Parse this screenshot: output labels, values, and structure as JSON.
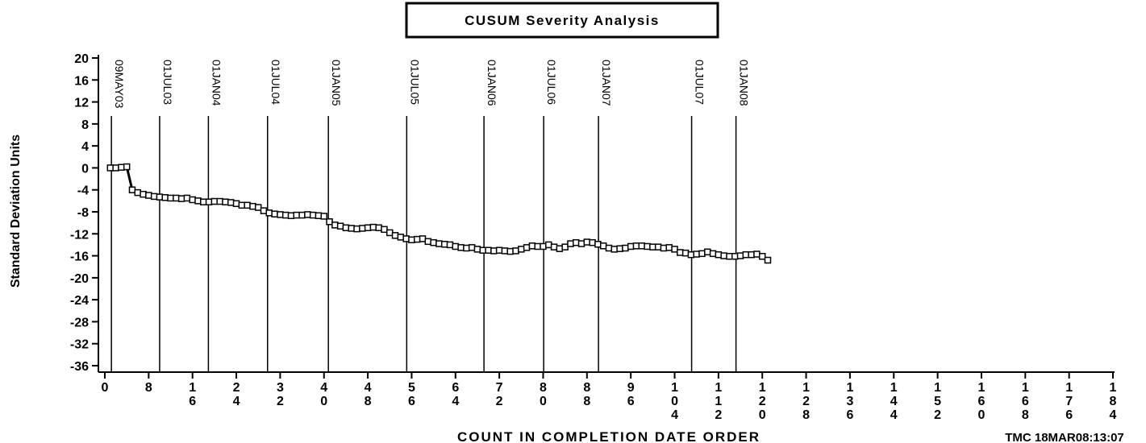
{
  "chart_data": {
    "type": "line",
    "title": "CUSUM Severity Analysis",
    "x_label": "COUNT IN COMPLETION DATE ORDER",
    "y_label": "Standard Deviation Units",
    "footer": "TMC 18MAR08:13:07",
    "xlim": [
      0,
      184
    ],
    "xticks": [
      0,
      8,
      16,
      24,
      32,
      40,
      48,
      56,
      64,
      72,
      80,
      88,
      96,
      104,
      112,
      120,
      128,
      136,
      144,
      152,
      160,
      168,
      176,
      184
    ],
    "ylim": [
      -36,
      20
    ],
    "yticks": [
      -36,
      -32,
      -28,
      -24,
      -20,
      -16,
      -12,
      -8,
      -4,
      0,
      4,
      8,
      12,
      16,
      20
    ],
    "reference_lines": [
      {
        "x": 1.2,
        "label": "09MAY03"
      },
      {
        "x": 10,
        "label": "01JUL03"
      },
      {
        "x": 18.9,
        "label": "01JAN04"
      },
      {
        "x": 29.7,
        "label": "01JUL04"
      },
      {
        "x": 40.8,
        "label": "01JAN05"
      },
      {
        "x": 55.1,
        "label": "01JUL05"
      },
      {
        "x": 69.2,
        "label": "01JAN06"
      },
      {
        "x": 80.1,
        "label": "01JUL06"
      },
      {
        "x": 90.1,
        "label": "01JAN07"
      },
      {
        "x": 107.1,
        "label": "01JUL07"
      },
      {
        "x": 115.2,
        "label": "01JAN08"
      }
    ],
    "color": "#000000",
    "x": [
      1,
      2,
      3,
      4,
      5,
      6,
      7,
      8,
      9,
      10,
      11,
      12,
      13,
      14,
      15,
      16,
      17,
      18,
      19,
      20,
      21,
      22,
      23,
      24,
      25,
      26,
      27,
      28,
      29,
      30,
      31,
      32,
      33,
      34,
      35,
      36,
      37,
      38,
      39,
      40,
      41,
      42,
      43,
      44,
      45,
      46,
      47,
      48,
      49,
      50,
      51,
      52,
      53,
      54,
      55,
      56,
      57,
      58,
      59,
      60,
      61,
      62,
      63,
      64,
      65,
      66,
      67,
      68,
      69,
      70,
      71,
      72,
      73,
      74,
      75,
      76,
      77,
      78,
      79,
      80,
      81,
      82,
      83,
      84,
      85,
      86,
      87,
      88,
      89,
      90,
      91,
      92,
      93,
      94,
      95,
      96,
      97,
      98,
      99,
      100,
      101,
      102,
      103,
      104,
      105,
      106,
      107,
      108,
      109,
      110,
      111,
      112,
      113,
      114,
      115,
      116,
      117,
      118,
      119,
      120,
      121
    ],
    "values": [
      0,
      0,
      0.1,
      0.2,
      -4,
      -4.5,
      -4.8,
      -5,
      -5.2,
      -5.3,
      -5.4,
      -5.5,
      -5.5,
      -5.6,
      -5.5,
      -5.8,
      -6,
      -6.2,
      -6.2,
      -6.1,
      -6.1,
      -6.2,
      -6.3,
      -6.5,
      -6.8,
      -6.8,
      -7,
      -7.2,
      -7.8,
      -8.2,
      -8.4,
      -8.5,
      -8.6,
      -8.7,
      -8.6,
      -8.6,
      -8.5,
      -8.6,
      -8.7,
      -8.8,
      -9.8,
      -10.4,
      -10.6,
      -10.9,
      -11,
      -11.1,
      -11,
      -10.9,
      -10.8,
      -10.9,
      -11.2,
      -11.8,
      -12.3,
      -12.6,
      -12.9,
      -13.1,
      -13,
      -12.9,
      -13.4,
      -13.6,
      -13.8,
      -13.9,
      -14,
      -14.3,
      -14.5,
      -14.6,
      -14.5,
      -14.8,
      -15,
      -15,
      -15.1,
      -15,
      -15.1,
      -15.2,
      -15.1,
      -14.8,
      -14.5,
      -14.2,
      -14.3,
      -14.3,
      -14,
      -14.4,
      -14.7,
      -14.4,
      -13.8,
      -13.6,
      -13.8,
      -13.5,
      -13.6,
      -13.9,
      -14.2,
      -14.6,
      -14.8,
      -14.7,
      -14.6,
      -14.3,
      -14.2,
      -14.2,
      -14.3,
      -14.4,
      -14.4,
      -14.6,
      -14.5,
      -14.8,
      -15.4,
      -15.5,
      -15.8,
      -15.7,
      -15.6,
      -15.3,
      -15.6,
      -15.8,
      -16,
      -16.1,
      -16.1,
      -16,
      -15.8,
      -15.8,
      -15.7,
      -16.1,
      -16.8
    ]
  }
}
